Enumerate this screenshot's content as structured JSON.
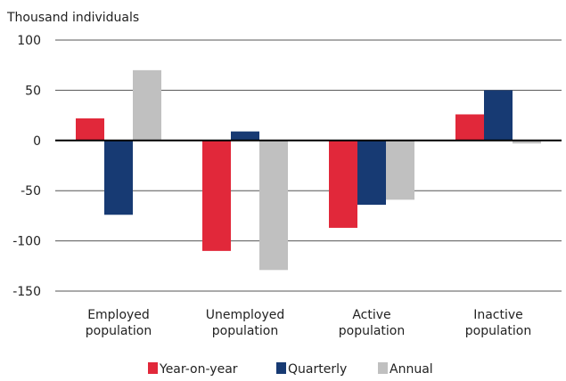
{
  "chart_data": {
    "type": "bar",
    "ylabel": "Thousand individuals",
    "categories": [
      [
        "Employed",
        "population"
      ],
      [
        "Unemployed",
        "population"
      ],
      [
        "Active",
        "population"
      ],
      [
        "Inactive",
        "population"
      ]
    ],
    "series": [
      {
        "name": "Year-on-year",
        "color": "#e1283a",
        "values": [
          22,
          -110,
          -87,
          26
        ]
      },
      {
        "name": "Quarterly",
        "color": "#173a73",
        "values": [
          -74,
          9,
          -64,
          50
        ]
      },
      {
        "name": "Annual",
        "color": "#c0c0c0",
        "values": [
          70,
          -129,
          -59,
          -3
        ]
      }
    ],
    "ylim": [
      -150,
      100
    ],
    "yticks": [
      100,
      50,
      0,
      -50,
      -100,
      -150
    ],
    "grid": true,
    "legend": "bottom"
  }
}
